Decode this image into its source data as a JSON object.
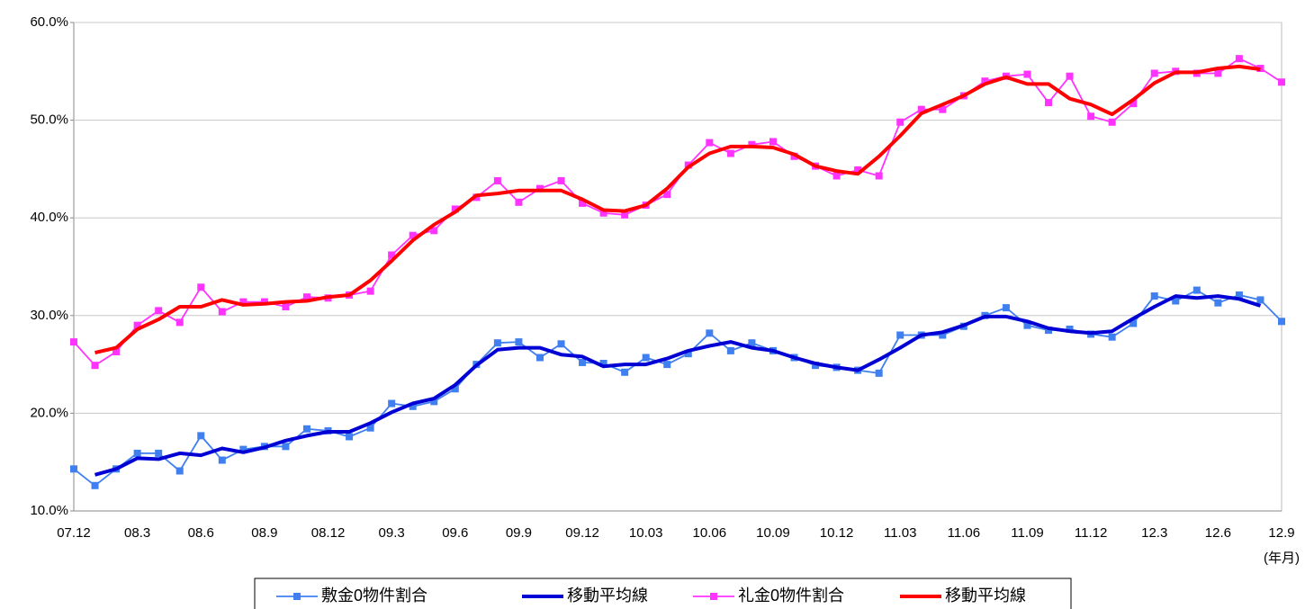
{
  "chart_data": {
    "type": "line",
    "categories": [
      "07.12",
      null,
      null,
      "08.3",
      null,
      null,
      "08.6",
      null,
      null,
      "08.9",
      null,
      null,
      "08.12",
      null,
      null,
      "09.3",
      null,
      null,
      "09.6",
      null,
      null,
      "09.9",
      null,
      null,
      "09.12",
      null,
      null,
      "10.03",
      null,
      null,
      "10.06",
      null,
      null,
      "10.09",
      null,
      null,
      "10.12",
      null,
      null,
      "11.03",
      null,
      null,
      "11.06",
      null,
      null,
      "11.09",
      null,
      null,
      "11.12",
      null,
      null,
      "12.3",
      null,
      null,
      "12.6",
      null,
      null,
      "12.9"
    ],
    "x_label": "(年月)",
    "ylim": [
      10,
      60
    ],
    "yticks": [
      {
        "value": 10,
        "label": "10.0%"
      },
      {
        "value": 20,
        "label": "20.0%"
      },
      {
        "value": 30,
        "label": "30.0%"
      },
      {
        "value": 40,
        "label": "40.0%"
      },
      {
        "value": 50,
        "label": "50.0%"
      },
      {
        "value": 60,
        "label": "60.0%"
      }
    ],
    "grid": true,
    "legend": "bottom",
    "series": [
      {
        "name": "敷金0物件割合",
        "color": "#3f7ff0",
        "marker": "square",
        "values": [
          14.3,
          12.6,
          14.3,
          15.9,
          15.9,
          14.1,
          17.7,
          15.2,
          16.3,
          16.6,
          16.6,
          18.4,
          18.2,
          17.6,
          18.5,
          21.0,
          20.7,
          21.2,
          22.5,
          25.0,
          27.2,
          27.3,
          25.7,
          27.1,
          25.2,
          25.1,
          24.2,
          25.7,
          25.0,
          26.1,
          28.2,
          26.4,
          27.2,
          26.4,
          25.7,
          24.9,
          24.7,
          24.4,
          24.1,
          28.0,
          28.0,
          28.0,
          28.9,
          30.0,
          30.8,
          29.0,
          28.5,
          28.6,
          28.1,
          27.8,
          29.2,
          32.0,
          31.5,
          32.6,
          31.3,
          32.1,
          31.6,
          29.4
        ]
      },
      {
        "name": "移動平均線",
        "color": "#0000d4",
        "marker": "none",
        "values": [
          null,
          13.7,
          14.3,
          15.4,
          15.3,
          15.9,
          15.7,
          16.4,
          16.0,
          16.5,
          17.2,
          17.7,
          18.1,
          18.1,
          19.0,
          20.1,
          21.0,
          21.5,
          22.9,
          24.9,
          26.5,
          26.7,
          26.7,
          26.0,
          25.8,
          24.8,
          25.0,
          25.0,
          25.6,
          26.4,
          26.9,
          27.3,
          26.7,
          26.4,
          25.7,
          25.1,
          24.7,
          24.4,
          25.5,
          26.7,
          28.0,
          28.3,
          29.0,
          29.9,
          29.9,
          29.4,
          28.7,
          28.4,
          28.2,
          28.4,
          29.7,
          30.9,
          32.0,
          31.8,
          32.0,
          31.7,
          31.0,
          null
        ]
      },
      {
        "name": "礼金0物件割合",
        "color": "#ff33ff",
        "marker": "square",
        "values": [
          27.3,
          24.9,
          26.3,
          29.0,
          30.5,
          29.3,
          32.9,
          30.4,
          31.4,
          31.4,
          30.9,
          31.9,
          31.8,
          32.1,
          32.5,
          36.2,
          38.2,
          38.7,
          40.9,
          42.1,
          43.8,
          41.6,
          43.0,
          43.8,
          41.5,
          40.5,
          40.3,
          41.3,
          42.4,
          45.4,
          47.7,
          46.6,
          47.5,
          47.8,
          46.3,
          45.3,
          44.3,
          44.9,
          44.3,
          49.8,
          51.1,
          51.1,
          52.5,
          54.0,
          54.5,
          54.7,
          51.8,
          54.5,
          50.4,
          49.8,
          51.7,
          54.8,
          55.0,
          54.8,
          54.8,
          56.3,
          55.3,
          53.9
        ]
      },
      {
        "name": "移動平均線",
        "color": "#ff0000",
        "marker": "none",
        "values": [
          null,
          26.2,
          26.7,
          28.6,
          29.6,
          30.9,
          30.9,
          31.6,
          31.1,
          31.2,
          31.4,
          31.5,
          31.9,
          32.1,
          33.6,
          35.6,
          37.7,
          39.3,
          40.6,
          42.3,
          42.5,
          42.8,
          42.8,
          42.8,
          41.9,
          40.8,
          40.7,
          41.3,
          43.0,
          45.2,
          46.6,
          47.3,
          47.3,
          47.2,
          46.5,
          45.3,
          44.8,
          44.5,
          46.3,
          48.4,
          50.7,
          51.6,
          52.5,
          53.7,
          54.4,
          53.7,
          53.7,
          52.2,
          51.6,
          50.6,
          52.1,
          53.8,
          54.9,
          54.9,
          55.3,
          55.5,
          55.2,
          null
        ]
      }
    ]
  }
}
